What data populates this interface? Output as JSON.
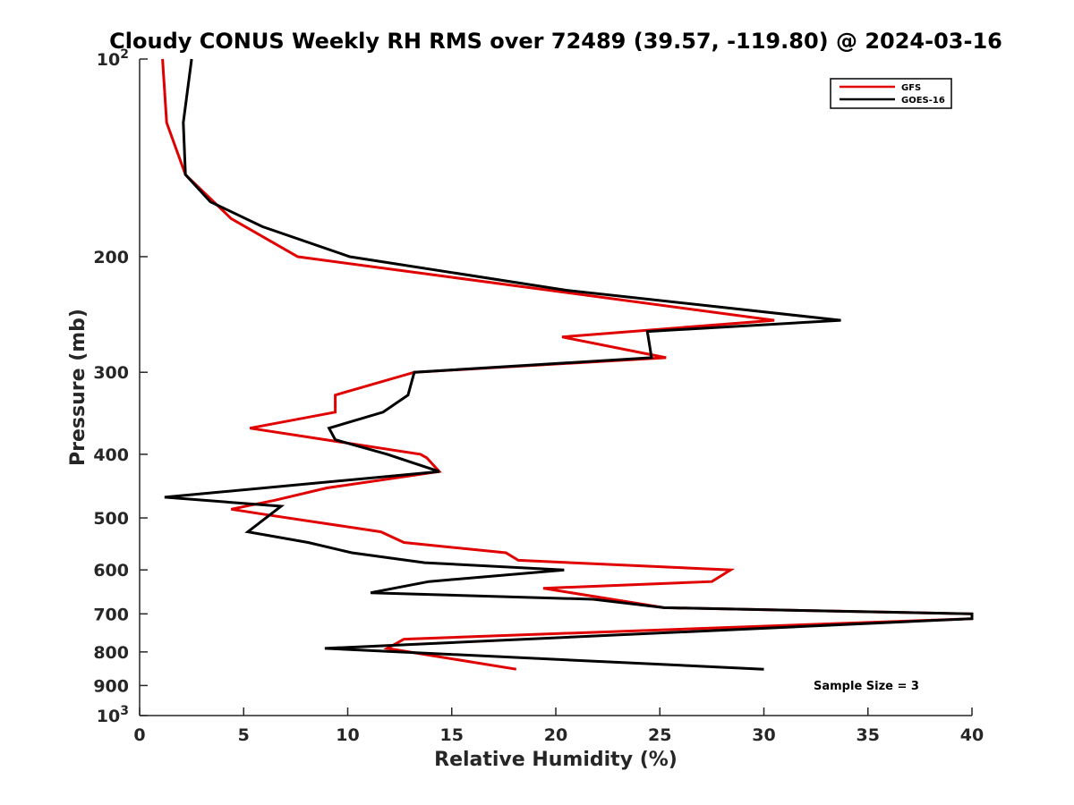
{
  "chart_data": {
    "type": "line",
    "title": "Cloudy CONUS Weekly RH RMS over 72489 (39.57, -119.80) @ 2024-03-16",
    "xlabel": "Relative Humidity (%)",
    "ylabel": "Pressure (mb)",
    "xlim": [
      0,
      40
    ],
    "ylim": [
      100,
      1000
    ],
    "y_scale": "log",
    "y_reversed": true,
    "x_ticks": [
      "0",
      "5",
      "10",
      "15",
      "20",
      "25",
      "30",
      "35",
      "40"
    ],
    "y_ticks": [
      {
        "value": 100,
        "base": "10",
        "exp": "2"
      },
      {
        "value": 200,
        "base": "200",
        "exp": ""
      },
      {
        "value": 300,
        "base": "300",
        "exp": ""
      },
      {
        "value": 400,
        "base": "400",
        "exp": ""
      },
      {
        "value": 500,
        "base": "500",
        "exp": ""
      },
      {
        "value": 600,
        "base": "600",
        "exp": ""
      },
      {
        "value": 700,
        "base": "700",
        "exp": ""
      },
      {
        "value": 800,
        "base": "800",
        "exp": ""
      },
      {
        "value": 900,
        "base": "900",
        "exp": ""
      },
      {
        "value": 1000,
        "base": "10",
        "exp": "3"
      }
    ],
    "grid": false,
    "legend_position": "top-right",
    "series": [
      {
        "name": "GFS",
        "color": "#e00000",
        "points": [
          [
            1.1,
            100
          ],
          [
            1.3,
            125
          ],
          [
            2.2,
            150
          ],
          [
            4.4,
            175
          ],
          [
            7.6,
            200
          ],
          [
            15.0,
            215
          ],
          [
            30.5,
            250
          ],
          [
            20.3,
            265
          ],
          [
            25.3,
            285
          ],
          [
            13.2,
            300
          ],
          [
            9.4,
            325
          ],
          [
            9.4,
            345
          ],
          [
            5.3,
            365
          ],
          [
            13.5,
            400
          ],
          [
            13.8,
            405
          ],
          [
            14.4,
            425
          ],
          [
            9.0,
            450
          ],
          [
            6.5,
            470
          ],
          [
            4.4,
            485
          ],
          [
            6.2,
            495
          ],
          [
            11.6,
            525
          ],
          [
            12.7,
            545
          ],
          [
            17.6,
            565
          ],
          [
            18.2,
            580
          ],
          [
            28.4,
            600
          ],
          [
            27.5,
            625
          ],
          [
            19.4,
            640
          ],
          [
            25.2,
            685
          ],
          [
            40.0,
            700
          ],
          [
            40.0,
            712
          ],
          [
            12.7,
            765
          ],
          [
            11.9,
            790
          ],
          [
            18.1,
            850
          ]
        ]
      },
      {
        "name": "GOES-16",
        "color": "#000000",
        "points": [
          [
            2.5,
            100
          ],
          [
            2.1,
            125
          ],
          [
            2.2,
            150
          ],
          [
            3.4,
            165
          ],
          [
            5.9,
            180
          ],
          [
            10.1,
            200
          ],
          [
            20.5,
            225
          ],
          [
            33.7,
            250
          ],
          [
            24.4,
            260
          ],
          [
            24.6,
            285
          ],
          [
            13.2,
            300
          ],
          [
            12.9,
            325
          ],
          [
            11.7,
            345
          ],
          [
            9.1,
            365
          ],
          [
            9.4,
            380
          ],
          [
            11.9,
            400
          ],
          [
            14.4,
            425
          ],
          [
            1.2,
            465
          ],
          [
            6.8,
            480
          ],
          [
            5.2,
            525
          ],
          [
            8.1,
            545
          ],
          [
            10.2,
            565
          ],
          [
            13.7,
            585
          ],
          [
            20.4,
            600
          ],
          [
            13.9,
            625
          ],
          [
            11.1,
            650
          ],
          [
            21.8,
            665
          ],
          [
            25.2,
            685
          ],
          [
            40.0,
            700
          ],
          [
            40.0,
            712
          ],
          [
            8.9,
            790
          ],
          [
            30.0,
            850
          ]
        ]
      }
    ],
    "annotation": "Sample Size = 3"
  }
}
